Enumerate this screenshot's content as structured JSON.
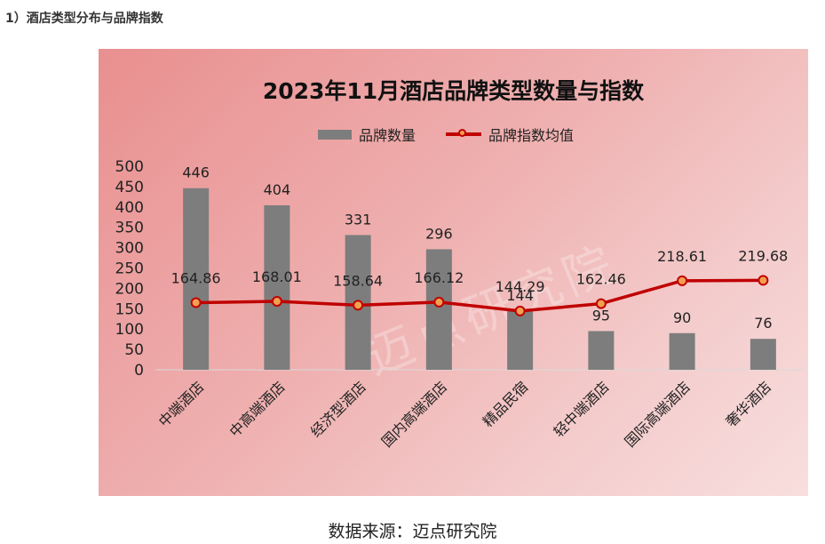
{
  "section_heading": "1）酒店类型分布与品牌指数",
  "watermark": "迈点研究院",
  "source": "数据来源：迈点研究院",
  "colors": {
    "bar": "#7d7d7d",
    "line": "#c00000",
    "marker_fill": "#f0a050"
  },
  "chart_data": {
    "type": "bar",
    "title": "2023年11月酒店品牌类型数量与指数",
    "categories": [
      "中端酒店",
      "中高端酒店",
      "经济型酒店",
      "国内高端酒店",
      "精品民宿",
      "轻中端酒店",
      "国际高端酒店",
      "奢华酒店"
    ],
    "series": [
      {
        "name": "品牌数量",
        "type": "bar",
        "values": [
          446,
          404,
          331,
          296,
          144,
          95,
          90,
          76
        ]
      },
      {
        "name": "品牌指数均值",
        "type": "line",
        "values": [
          164.86,
          168.01,
          158.64,
          166.12,
          144.29,
          162.46,
          218.61,
          219.68
        ]
      }
    ],
    "data_labels_bar": [
      "446",
      "404",
      "331",
      "296",
      "144",
      "95",
      "90",
      "76"
    ],
    "data_labels_line": [
      "164.86",
      "168.01",
      "158.64",
      "166.12",
      "144.29",
      "162.46",
      "218.61",
      "219.68"
    ],
    "yticks": [
      "500",
      "450",
      "400",
      "350",
      "300",
      "250",
      "200",
      "150",
      "100",
      "50",
      "0"
    ],
    "ylim": [
      0,
      500
    ],
    "legend_position": "top",
    "grid": false
  }
}
